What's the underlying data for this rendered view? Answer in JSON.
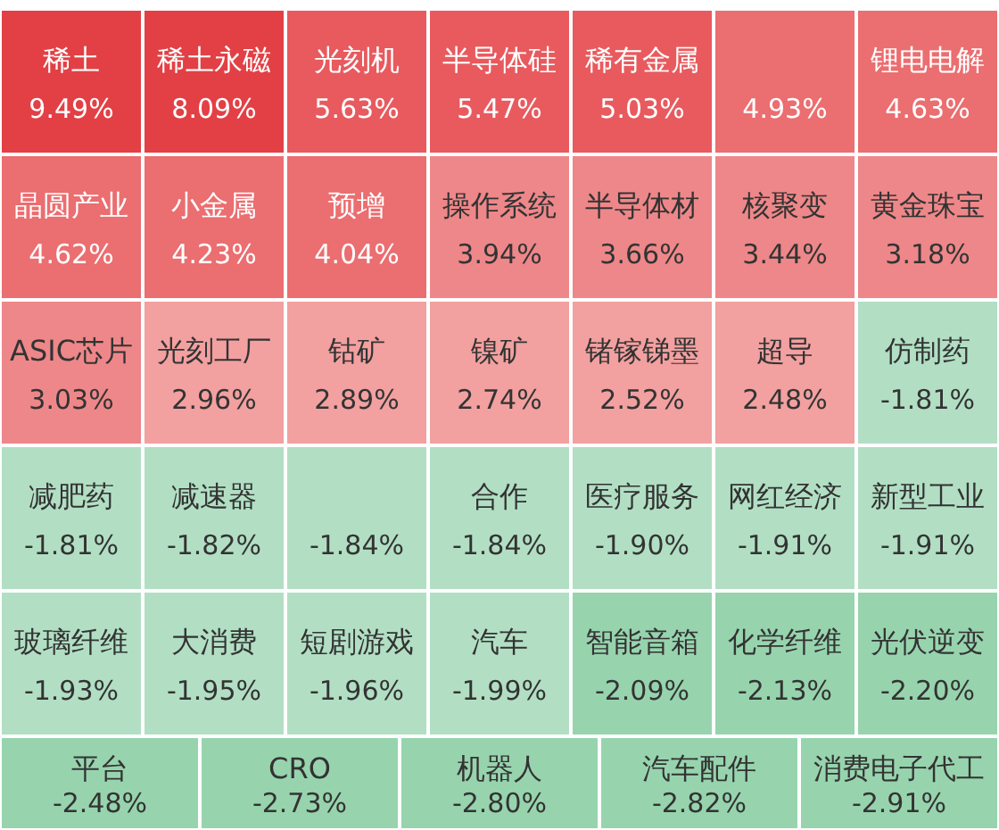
{
  "chart_data": {
    "type": "other",
    "categories": [
      "稀土",
      "稀土永磁",
      "光刻机",
      "半导体硅",
      "稀有金属",
      null,
      "锂电电解",
      "晶圆产业",
      "小金属",
      "预增",
      "操作系统",
      "半导体材",
      "核聚变",
      "黄金珠宝",
      "ASIC芯片",
      "光刻工厂",
      "钴矿",
      "镍矿",
      "锗镓锑墨",
      "超导",
      "仿制药",
      "减肥药",
      "减速器",
      null,
      "合作",
      "医疗服务",
      "网红经济",
      "新型工业",
      "玻璃纤维",
      "大消费",
      "短剧游戏",
      "汽车",
      "智能音箱",
      "化学纤维",
      "光伏逆变",
      "平台",
      "CRO",
      "机器人",
      "汽车配件",
      "消费电子代工"
    ],
    "values": [
      9.49,
      8.09,
      5.63,
      5.47,
      5.03,
      4.93,
      4.63,
      4.62,
      4.23,
      4.04,
      3.94,
      3.66,
      3.44,
      3.18,
      3.03,
      2.96,
      2.89,
      2.74,
      2.52,
      2.48,
      -1.81,
      -1.81,
      -1.82,
      -1.84,
      -1.84,
      -1.9,
      -1.91,
      -1.91,
      -1.93,
      -1.95,
      -1.96,
      -1.99,
      -2.09,
      -2.13,
      -2.2,
      -2.48,
      -2.73,
      -2.8,
      -2.82,
      -2.91
    ],
    "value_labels": [
      "9.49%",
      "8.09%",
      "5.63%",
      "5.47%",
      "5.03%",
      "4.93%",
      "4.63%",
      "4.62%",
      "4.23%",
      "4.04%",
      "3.94%",
      "3.66%",
      "3.44%",
      "3.18%",
      "3.03%",
      "2.96%",
      "2.89%",
      "2.74%",
      "2.52%",
      "2.48%",
      "-1.81%",
      "-1.81%",
      "-1.82%",
      "-1.84%",
      "-1.84%",
      "-1.90%",
      "-1.91%",
      "-1.91%",
      "-1.93%",
      "-1.95%",
      "-1.96%",
      "-1.99%",
      "-2.09%",
      "-2.13%",
      "-2.20%",
      "-2.48%",
      "-2.73%",
      "-2.80%",
      "-2.82%",
      "-2.91%"
    ],
    "colors": [
      "#e24045",
      "#e24045",
      "#e85a5e",
      "#e85a5e",
      "#e85a5e",
      "#eb6e70",
      "#eb6e70",
      "#eb6e70",
      "#eb6e70",
      "#eb6e70",
      "#ee8789",
      "#ee8789",
      "#ee8789",
      "#ee8789",
      "#ee8789",
      "#f2a0a0",
      "#f2a0a0",
      "#f2a0a0",
      "#f2a0a0",
      "#f2a0a0",
      "#b2dfc4",
      "#b2dfc4",
      "#b2dfc4",
      "#b2dfc4",
      "#b2dfc4",
      "#b2dfc4",
      "#b2dfc4",
      "#b2dfc4",
      "#b2dfc4",
      "#b2dfc4",
      "#b2dfc4",
      "#b2dfc4",
      "#97d4ae",
      "#97d4ae",
      "#97d4ae",
      "#97d4ae",
      "#97d4ae",
      "#97d4ae",
      "#97d4ae",
      "#97d4ae"
    ]
  }
}
